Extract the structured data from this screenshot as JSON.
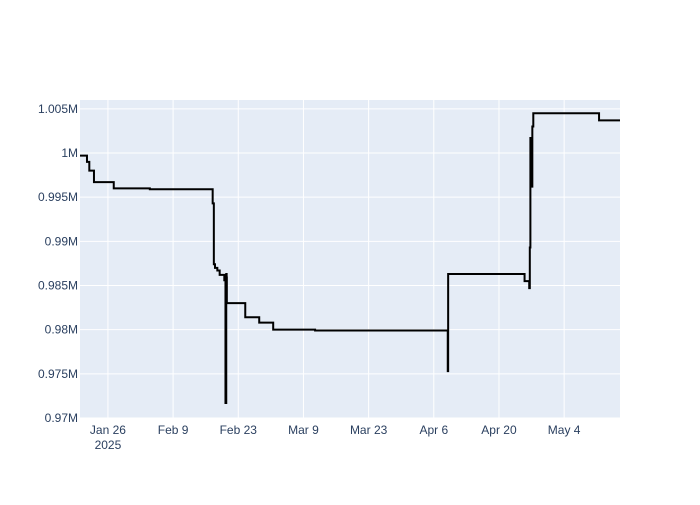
{
  "chart_data": {
    "type": "line",
    "line_shape": "step",
    "title": "",
    "xlabel": "",
    "ylabel": "",
    "grid": true,
    "colors": {
      "plot_background": "#e5ecf6",
      "grid": "#ffffff",
      "series": "#000000",
      "tick_text": "#2a3f5f"
    },
    "xlim": [
      "2025-01-20",
      "2025-05-16"
    ],
    "ylim": [
      970000,
      1006000
    ],
    "x_ticks": [
      {
        "value": "2025-01-26",
        "label": "Jan 26",
        "sublabel": "2025"
      },
      {
        "value": "2025-02-09",
        "label": "Feb 9"
      },
      {
        "value": "2025-02-23",
        "label": "Feb 23"
      },
      {
        "value": "2025-03-09",
        "label": "Mar 9"
      },
      {
        "value": "2025-03-23",
        "label": "Mar 23"
      },
      {
        "value": "2025-04-06",
        "label": "Apr 6"
      },
      {
        "value": "2025-04-20",
        "label": "Apr 20"
      },
      {
        "value": "2025-05-04",
        "label": "May 4"
      }
    ],
    "y_ticks": [
      {
        "value": 970000,
        "label": "0.97M"
      },
      {
        "value": 975000,
        "label": "0.975M"
      },
      {
        "value": 980000,
        "label": "0.98M"
      },
      {
        "value": 985000,
        "label": "0.985M"
      },
      {
        "value": 990000,
        "label": "0.99M"
      },
      {
        "value": 995000,
        "label": "0.995M"
      },
      {
        "value": 1000000,
        "label": "1M"
      },
      {
        "value": 1005000,
        "label": "1.005M"
      }
    ],
    "series": [
      {
        "x": [
          "2025-01-20T00:00",
          "2025-01-21T12:00",
          "2025-01-22T00:00",
          "2025-01-23T00:00",
          "2025-01-27T06:00",
          "2025-02-04T00:00",
          "2025-02-17T12:00",
          "2025-02-17T18:00",
          "2025-02-18T00:00",
          "2025-02-18T12:00",
          "2025-02-19T00:00",
          "2025-02-20T00:00",
          "2025-02-20T06:00",
          "2025-02-20T10:00",
          "2025-02-20T12:00",
          "2025-02-20T13:00",
          "2025-02-20T14:00",
          "2025-02-24T12:00",
          "2025-02-24T14:00",
          "2025-02-27T12:00",
          "2025-03-02T12:00",
          "2025-03-11T12:00",
          "2025-04-09T00:00",
          "2025-04-09T02:00",
          "2025-04-09T04:00",
          "2025-04-25T12:00",
          "2025-04-26T12:00",
          "2025-04-26T15:00",
          "2025-04-26T18:00",
          "2025-04-27T00:00",
          "2025-04-27T04:00",
          "2025-04-27T09:00",
          "2025-04-27T14:00",
          "2025-04-27T17:00",
          "2025-05-11T12:00",
          "2025-05-16T00:00"
        ],
        "y": [
          999700,
          999000,
          998000,
          996700,
          996000,
          995900,
          994300,
          987400,
          987000,
          986700,
          986200,
          985600,
          971700,
          986300,
          985900,
          983000,
          983000,
          981400,
          981400,
          980800,
          980000,
          979900,
          975300,
          986300,
          986300,
          985500,
          984700,
          989300,
          1001700,
          996200,
          1003000,
          1004500,
          1004500,
          1004500,
          1003700,
          1003700
        ]
      }
    ]
  }
}
